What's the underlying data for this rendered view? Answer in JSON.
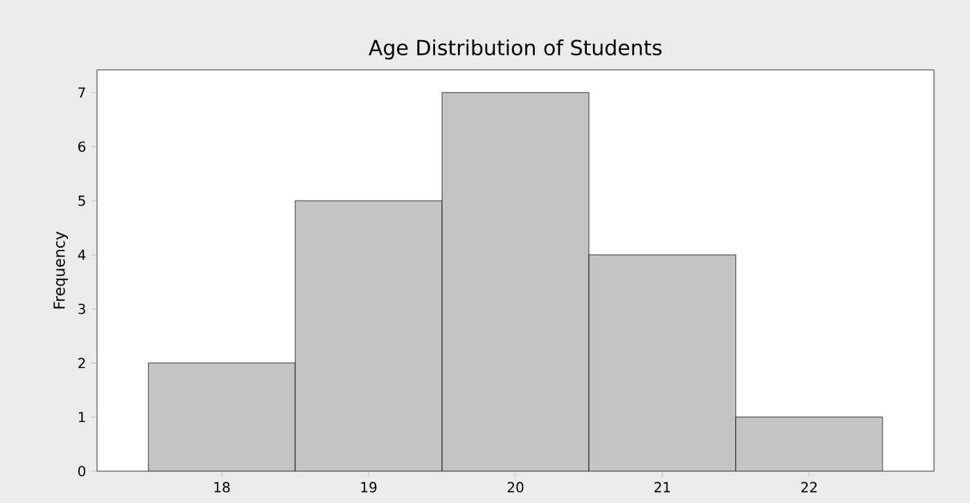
{
  "chart_data": {
    "type": "histogram",
    "title": "Age Distribution of Students",
    "ylabel": "Frequency",
    "bins": [
      17.5,
      18.5,
      19.5,
      20.5,
      21.5,
      22.5
    ],
    "values": [
      2,
      5,
      7,
      4,
      1
    ],
    "color": "#c4c4c4",
    "xlim": [
      17.15,
      22.85
    ],
    "ylim": [
      0,
      7.42
    ],
    "xticks": [
      18,
      19,
      20,
      21,
      22
    ],
    "yticks": [
      0,
      1,
      2,
      3,
      4,
      5,
      6,
      7
    ],
    "grid": false
  }
}
